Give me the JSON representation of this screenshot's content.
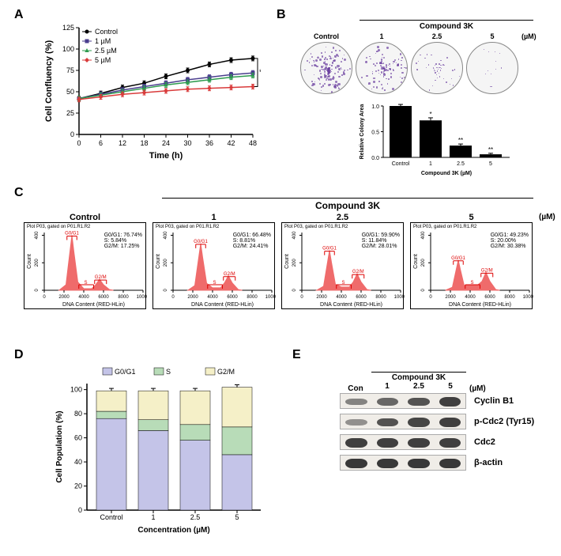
{
  "labels": {
    "A": "A",
    "B": "B",
    "C": "C",
    "D": "D",
    "E": "E"
  },
  "panelA": {
    "type": "line",
    "title": "",
    "xlabel": "Time (h)",
    "ylabel": "Cell Confluency (%)",
    "x_ticks": [
      0,
      6,
      12,
      18,
      24,
      30,
      36,
      42,
      48
    ],
    "y_ticks": [
      0,
      25,
      50,
      75,
      100,
      125
    ],
    "xlim": [
      0,
      48
    ],
    "ylim": [
      0,
      125
    ],
    "series": [
      {
        "name": "Control",
        "color": "#000000",
        "marker": "circle",
        "y": [
          42,
          48,
          55,
          60,
          68,
          75,
          82,
          87,
          89
        ]
      },
      {
        "name": "1 µM",
        "color": "#4a3e8e",
        "marker": "square",
        "y": [
          42,
          47,
          52,
          56,
          60,
          64,
          67,
          70,
          72
        ]
      },
      {
        "name": "2.5 µM",
        "color": "#2e9b4f",
        "marker": "triangle",
        "y": [
          42,
          46,
          50,
          54,
          58,
          61,
          64,
          67,
          69
        ]
      },
      {
        "name": "5 µM",
        "color": "#d93b3b",
        "marker": "diamond",
        "y": [
          41,
          44,
          47,
          49,
          51,
          53,
          54,
          55,
          56
        ]
      }
    ],
    "significance": "**",
    "background_color": "#ffffff",
    "label_fontsize": 10
  },
  "panelB": {
    "header": "Compound 3K",
    "wells": [
      {
        "label": "Control",
        "density": 0.95,
        "color": "#6b3fa0"
      },
      {
        "label": "1",
        "density": 0.7,
        "color": "#6b3fa0"
      },
      {
        "label": "2.5",
        "density": 0.3,
        "color": "#6b3fa0"
      },
      {
        "label": "5",
        "density": 0.08,
        "color": "#6b3fa0"
      }
    ],
    "unit": "(µM)",
    "bar": {
      "ylabel": "Relative Colony Area",
      "xlabel": "Compound 3K (µM)",
      "categories": [
        "Control",
        "1",
        "2.5",
        "5"
      ],
      "values": [
        1.0,
        0.72,
        0.23,
        0.06
      ],
      "errors": [
        0.03,
        0.05,
        0.03,
        0.02
      ],
      "sig": [
        "",
        "*",
        "**",
        "**"
      ],
      "ylim": [
        0,
        1.0
      ],
      "ytick_step": 0.5,
      "bar_color": "#000000"
    }
  },
  "panelC": {
    "header": "Compound 3K",
    "unit": "(µM)",
    "histograms": [
      {
        "label": "Control",
        "g0g1": 76.74,
        "s": 5.84,
        "g2m": 17.25,
        "peak1": 400,
        "peak2": 80,
        "color": "#ef6b6b"
      },
      {
        "label": "1",
        "g0g1": 66.48,
        "s": 8.81,
        "g2m": 24.41,
        "peak1": 340,
        "peak2": 105,
        "color": "#ef6b6b"
      },
      {
        "label": "2.5",
        "g0g1": 59.9,
        "s": 11.84,
        "g2m": 28.01,
        "peak1": 290,
        "peak2": 120,
        "color": "#ef6b6b"
      },
      {
        "label": "5",
        "g0g1": 49.23,
        "s": 20.0,
        "g2m": 30.38,
        "peak1": 220,
        "peak2": 130,
        "color": "#ef6b6b"
      }
    ],
    "plot_title": "Plot P03, gated on P01.R1.R2",
    "xlabel": "DNA Content (RED-HLin)",
    "ylabel": "Count",
    "x_ticks": [
      0,
      2000,
      4000,
      6000,
      8000,
      10000
    ],
    "y_range": "0  200  400",
    "phase_labels": {
      "g0g1": "G0/G1",
      "s": "S",
      "g2m": "G2/M"
    }
  },
  "panelD": {
    "type": "stacked-bar",
    "xlabel": "Concentration (µM)",
    "ylabel": "Cell Population (%)",
    "categories": [
      "Control",
      "1",
      "2.5",
      "5"
    ],
    "y_ticks": [
      0,
      20,
      40,
      60,
      80,
      100
    ],
    "ylim": [
      0,
      105
    ],
    "series": [
      {
        "name": "G0/G1",
        "color": "#c4c4e8",
        "values": [
          76,
          66,
          58,
          46
        ]
      },
      {
        "name": "S",
        "color": "#b8dcb8",
        "values": [
          6,
          9,
          13,
          23
        ]
      },
      {
        "name": "G2/M",
        "color": "#f5f0c8",
        "values": [
          17,
          24,
          28,
          33
        ]
      }
    ]
  },
  "panelE": {
    "header": "Compound 3K",
    "con_label": "Con",
    "doses": [
      "1",
      "2.5",
      "5"
    ],
    "unit": "(µM)",
    "bands": [
      {
        "name": "Cyclin B1",
        "intensities": [
          0.35,
          0.55,
          0.7,
          0.85
        ]
      },
      {
        "name": "p-Cdc2 (Tyr15)",
        "intensities": [
          0.25,
          0.7,
          0.8,
          0.85
        ]
      },
      {
        "name": "Cdc2",
        "intensities": [
          0.85,
          0.85,
          0.85,
          0.85
        ]
      },
      {
        "name": "β-actin",
        "intensities": [
          0.9,
          0.9,
          0.9,
          0.9
        ]
      }
    ]
  }
}
